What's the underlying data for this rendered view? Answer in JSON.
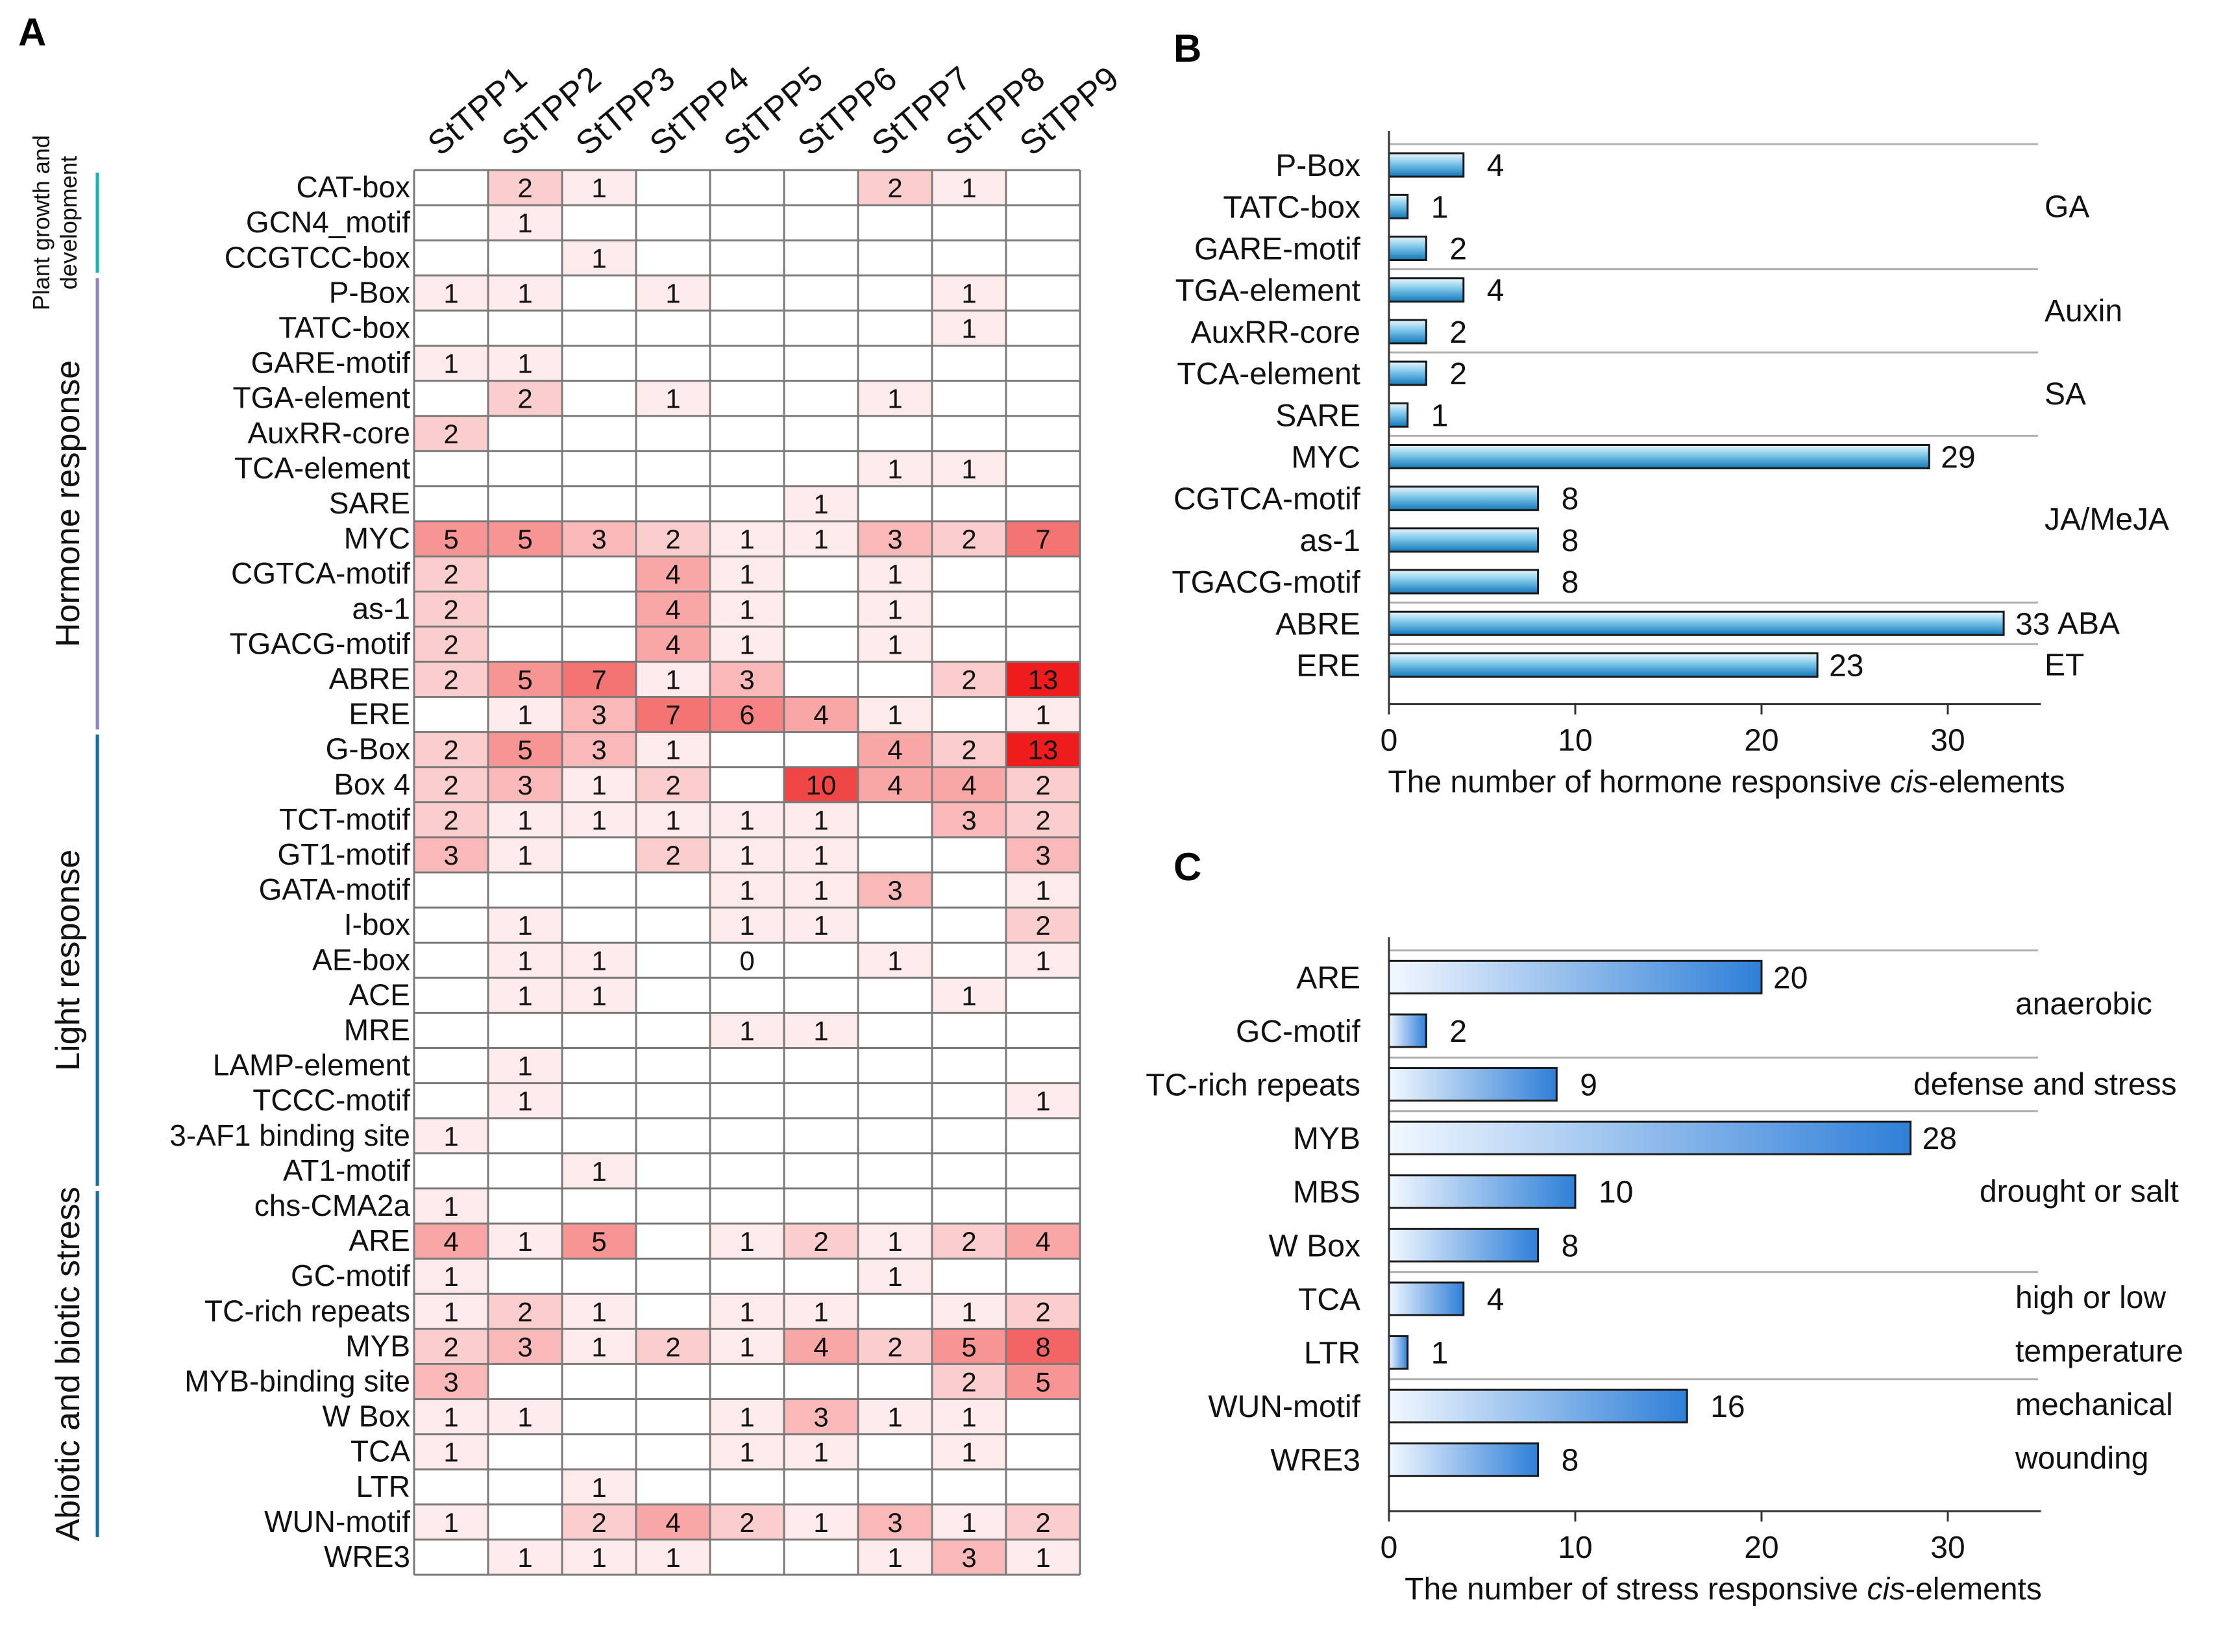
{
  "chart_data": [
    {
      "type": "heatmap",
      "panel_label": "A",
      "columns": [
        "StTPP1",
        "StTPP2",
        "StTPP3",
        "StTPP4",
        "StTPP5",
        "StTPP6",
        "StTPP7",
        "StTPP8",
        "StTPP9"
      ],
      "groups": [
        {
          "label_lines": [
            "Plant growth and",
            "development"
          ],
          "color": "#18b4b4",
          "row_start": 0,
          "row_end": 2
        },
        {
          "label_lines": [
            "Hormone response"
          ],
          "color": "#8a86c6",
          "row_start": 3,
          "row_end": 15
        },
        {
          "label_lines": [
            "Light response"
          ],
          "color": "#1a6e9e",
          "row_start": 16,
          "row_end": 28
        },
        {
          "label_lines": [
            "Abiotic and biotic stress"
          ],
          "color": "#1a6e9e",
          "row_start": 29,
          "row_end": 38
        }
      ],
      "rows": [
        {
          "label": "CAT-box",
          "values": [
            null,
            2,
            1,
            null,
            null,
            null,
            2,
            1,
            null
          ]
        },
        {
          "label": "GCN4_motif",
          "values": [
            null,
            1,
            null,
            null,
            null,
            null,
            null,
            null,
            null
          ]
        },
        {
          "label": "CCGTCC-box",
          "values": [
            null,
            null,
            1,
            null,
            null,
            null,
            null,
            null,
            null
          ]
        },
        {
          "label": "P-Box",
          "values": [
            1,
            1,
            null,
            1,
            null,
            null,
            null,
            1,
            null
          ]
        },
        {
          "label": "TATC-box",
          "values": [
            null,
            null,
            null,
            null,
            null,
            null,
            null,
            1,
            null
          ]
        },
        {
          "label": "GARE-motif",
          "values": [
            1,
            1,
            null,
            null,
            null,
            null,
            null,
            null,
            null
          ]
        },
        {
          "label": "TGA-element",
          "values": [
            null,
            2,
            null,
            1,
            null,
            null,
            1,
            null,
            null
          ]
        },
        {
          "label": "AuxRR-core",
          "values": [
            2,
            null,
            null,
            null,
            null,
            null,
            null,
            null,
            null
          ]
        },
        {
          "label": "TCA-element",
          "values": [
            null,
            null,
            null,
            null,
            null,
            null,
            1,
            1,
            null
          ]
        },
        {
          "label": "SARE",
          "values": [
            null,
            null,
            null,
            null,
            null,
            1,
            null,
            null,
            null
          ]
        },
        {
          "label": "MYC",
          "values": [
            5,
            5,
            3,
            2,
            1,
            1,
            3,
            2,
            7
          ]
        },
        {
          "label": "CGTCA-motif",
          "values": [
            2,
            null,
            null,
            4,
            1,
            null,
            1,
            null,
            null
          ]
        },
        {
          "label": "as-1",
          "values": [
            2,
            null,
            null,
            4,
            1,
            null,
            1,
            null,
            null
          ]
        },
        {
          "label": "TGACG-motif",
          "values": [
            2,
            null,
            null,
            4,
            1,
            null,
            1,
            null,
            null
          ]
        },
        {
          "label": "ABRE",
          "values": [
            2,
            5,
            7,
            1,
            3,
            null,
            null,
            2,
            13
          ]
        },
        {
          "label": "ERE",
          "values": [
            null,
            1,
            3,
            7,
            6,
            4,
            1,
            null,
            1
          ]
        },
        {
          "label": "G-Box",
          "values": [
            2,
            5,
            3,
            1,
            null,
            null,
            4,
            2,
            13
          ]
        },
        {
          "label": "Box 4",
          "values": [
            2,
            3,
            1,
            2,
            null,
            10,
            4,
            4,
            2
          ]
        },
        {
          "label": "TCT-motif",
          "values": [
            2,
            1,
            1,
            1,
            1,
            1,
            null,
            3,
            2
          ]
        },
        {
          "label": "GT1-motif",
          "values": [
            3,
            1,
            null,
            2,
            1,
            1,
            null,
            null,
            3
          ]
        },
        {
          "label": "GATA-motif",
          "values": [
            null,
            null,
            null,
            null,
            1,
            1,
            3,
            null,
            1
          ]
        },
        {
          "label": "I-box",
          "values": [
            null,
            1,
            null,
            null,
            1,
            1,
            null,
            null,
            2
          ]
        },
        {
          "label": "AE-box",
          "values": [
            null,
            1,
            1,
            null,
            0,
            null,
            1,
            null,
            1
          ]
        },
        {
          "label": "ACE",
          "values": [
            null,
            1,
            1,
            null,
            null,
            null,
            null,
            1,
            null
          ]
        },
        {
          "label": "MRE",
          "values": [
            null,
            null,
            null,
            null,
            1,
            1,
            null,
            null,
            null
          ]
        },
        {
          "label": "LAMP-element",
          "values": [
            null,
            1,
            null,
            null,
            null,
            null,
            null,
            null,
            null
          ]
        },
        {
          "label": "TCCC-motif",
          "values": [
            null,
            1,
            null,
            null,
            null,
            null,
            null,
            null,
            1
          ]
        },
        {
          "label": "3-AF1 binding site",
          "values": [
            1,
            null,
            null,
            null,
            null,
            null,
            null,
            null,
            null
          ]
        },
        {
          "label": "AT1-motif",
          "values": [
            null,
            null,
            1,
            null,
            null,
            null,
            null,
            null,
            null
          ]
        },
        {
          "label": "chs-CMA2a",
          "values": [
            1,
            null,
            null,
            null,
            null,
            null,
            null,
            null,
            null
          ]
        },
        {
          "label": "ARE",
          "values": [
            4,
            1,
            5,
            null,
            1,
            2,
            1,
            2,
            4
          ]
        },
        {
          "label": "GC-motif",
          "values": [
            1,
            null,
            null,
            null,
            null,
            null,
            1,
            null,
            null
          ]
        },
        {
          "label": "TC-rich repeats",
          "values": [
            1,
            2,
            1,
            null,
            1,
            1,
            null,
            1,
            2
          ]
        },
        {
          "label": "MYB",
          "values": [
            2,
            3,
            1,
            2,
            1,
            4,
            2,
            5,
            8
          ]
        },
        {
          "label": "MYB-binding site",
          "values": [
            3,
            null,
            null,
            null,
            null,
            null,
            null,
            2,
            5
          ]
        },
        {
          "label": "W Box",
          "values": [
            1,
            1,
            null,
            null,
            1,
            3,
            1,
            1,
            null
          ]
        },
        {
          "label": "TCA",
          "values": [
            1,
            null,
            null,
            null,
            1,
            1,
            null,
            1,
            null
          ]
        },
        {
          "label": "LTR",
          "values": [
            null,
            null,
            1,
            null,
            null,
            null,
            null,
            null,
            null
          ]
        },
        {
          "label": "WUN-motif",
          "values": [
            1,
            null,
            2,
            4,
            2,
            1,
            3,
            1,
            2
          ]
        },
        {
          "label": "WRE3",
          "values": [
            null,
            1,
            1,
            1,
            null,
            null,
            1,
            3,
            1
          ]
        }
      ],
      "color_scale": {
        "low": "#fdeaea",
        "high": "#ee1c1c",
        "min": 1,
        "max": 13
      }
    },
    {
      "type": "bar",
      "orientation": "horizontal",
      "panel_label": "B",
      "categories": [
        "P-Box",
        "TATC-box",
        "GARE-motif",
        "TGA-element",
        "AuxRR-core",
        "TCA-element",
        "SARE",
        "MYC",
        "CGTCA-motif",
        "as-1",
        "TGACG-motif",
        "ABRE",
        "ERE"
      ],
      "values": [
        4,
        1,
        2,
        4,
        2,
        2,
        1,
        29,
        8,
        8,
        8,
        33,
        23
      ],
      "xlabel_prefix": "The number of hormone responsive ",
      "xlabel_italic": "cis",
      "xlabel_suffix": "-elements",
      "xlim": [
        0,
        35
      ],
      "xticks": [
        0,
        10,
        20,
        30
      ],
      "groups": [
        {
          "label_lines": [
            "GA"
          ],
          "row_start": 0,
          "row_end": 2
        },
        {
          "label_lines": [
            "Auxin"
          ],
          "row_start": 3,
          "row_end": 4
        },
        {
          "label_lines": [
            "SA"
          ],
          "row_start": 5,
          "row_end": 6
        },
        {
          "label_lines": [
            "JA/MeJA"
          ],
          "row_start": 7,
          "row_end": 10
        },
        {
          "label_lines": [
            "ABA"
          ],
          "row_start": 11,
          "row_end": 11
        },
        {
          "label_lines": [
            "ET"
          ],
          "row_start": 12,
          "row_end": 12
        }
      ],
      "bar_color": "#1a8ccc"
    },
    {
      "type": "bar",
      "orientation": "horizontal",
      "panel_label": "C",
      "categories": [
        "ARE",
        "GC-motif",
        "TC-rich repeats",
        "MYB",
        "MBS",
        "W Box",
        "TCA",
        "LTR",
        "WUN-motif",
        "WRE3"
      ],
      "values": [
        20,
        2,
        9,
        28,
        10,
        8,
        4,
        1,
        16,
        8
      ],
      "xlabel_prefix": "The number of stress responsive ",
      "xlabel_italic": "cis",
      "xlabel_suffix": "-elements",
      "xlim": [
        0,
        35
      ],
      "xticks": [
        0,
        10,
        20,
        30
      ],
      "groups": [
        {
          "label_lines": [
            "anaerobic"
          ],
          "row_start": 0,
          "row_end": 1
        },
        {
          "label_lines": [
            "defense and stress"
          ],
          "row_start": 2,
          "row_end": 2
        },
        {
          "label_lines": [
            "drought or salt"
          ],
          "row_start": 3,
          "row_end": 5
        },
        {
          "label_lines": [
            "high or low",
            "temperature"
          ],
          "row_start": 6,
          "row_end": 7
        },
        {
          "label_lines": [
            "mechanical",
            "wounding"
          ],
          "row_start": 8,
          "row_end": 9
        }
      ],
      "bar_color": "#3a86dc"
    }
  ]
}
